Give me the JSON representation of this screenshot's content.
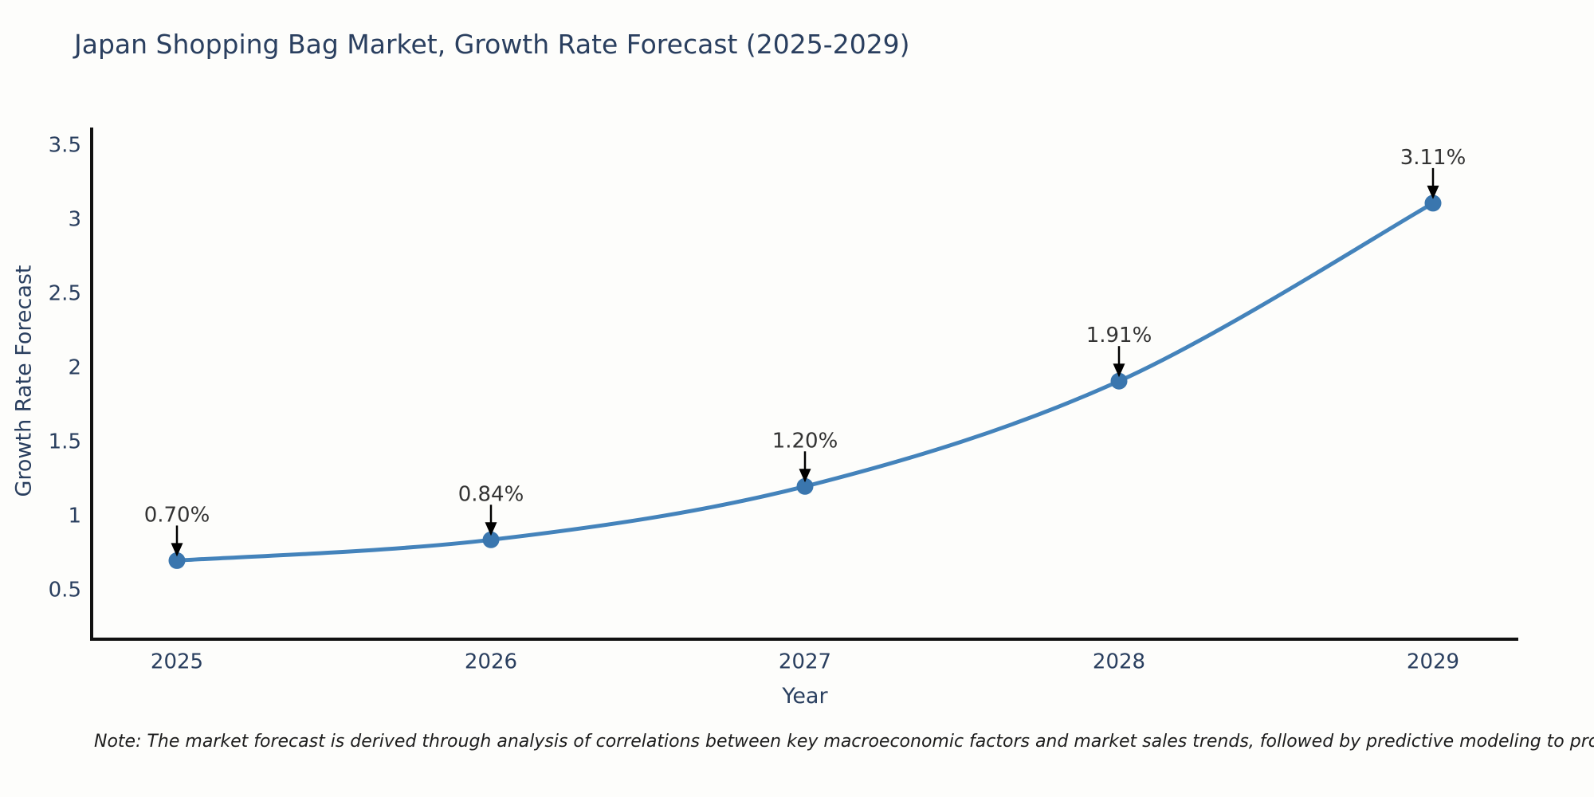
{
  "page": {
    "note": "Note: The market forecast is derived through analysis of correlations between key macroeconomic factors and market sales trends, followed by predictive modeling to project future sales"
  },
  "chart_data": {
    "type": "line",
    "title": "Japan Shopping Bag Market, Growth Rate Forecast (2025-2029)",
    "xlabel": "Year",
    "ylabel": "Growth Rate Forecast",
    "categories": [
      "2025",
      "2026",
      "2027",
      "2028",
      "2029"
    ],
    "series": [
      {
        "name": "Growth Rate Forecast",
        "values": [
          0.7,
          0.84,
          1.2,
          1.91,
          3.11
        ]
      }
    ],
    "point_labels": [
      "0.70%",
      "0.84%",
      "1.20%",
      "1.91%",
      "3.11%"
    ],
    "y_ticks": [
      0.5,
      1,
      1.5,
      2,
      2.5,
      3,
      3.5
    ],
    "ylim": [
      0.17,
      3.62
    ],
    "line_shape": "spline",
    "grid": false,
    "legend": "none",
    "annotation_style": "down-arrow",
    "colors": {
      "line": "#4483bb",
      "marker": "#3a76ae",
      "axis": "#111111",
      "tick_label": "#2a3f5f",
      "title": "#2a3f5f",
      "annotation": "#333333",
      "arrow": "#000000",
      "background": "#fdfdfb"
    }
  }
}
